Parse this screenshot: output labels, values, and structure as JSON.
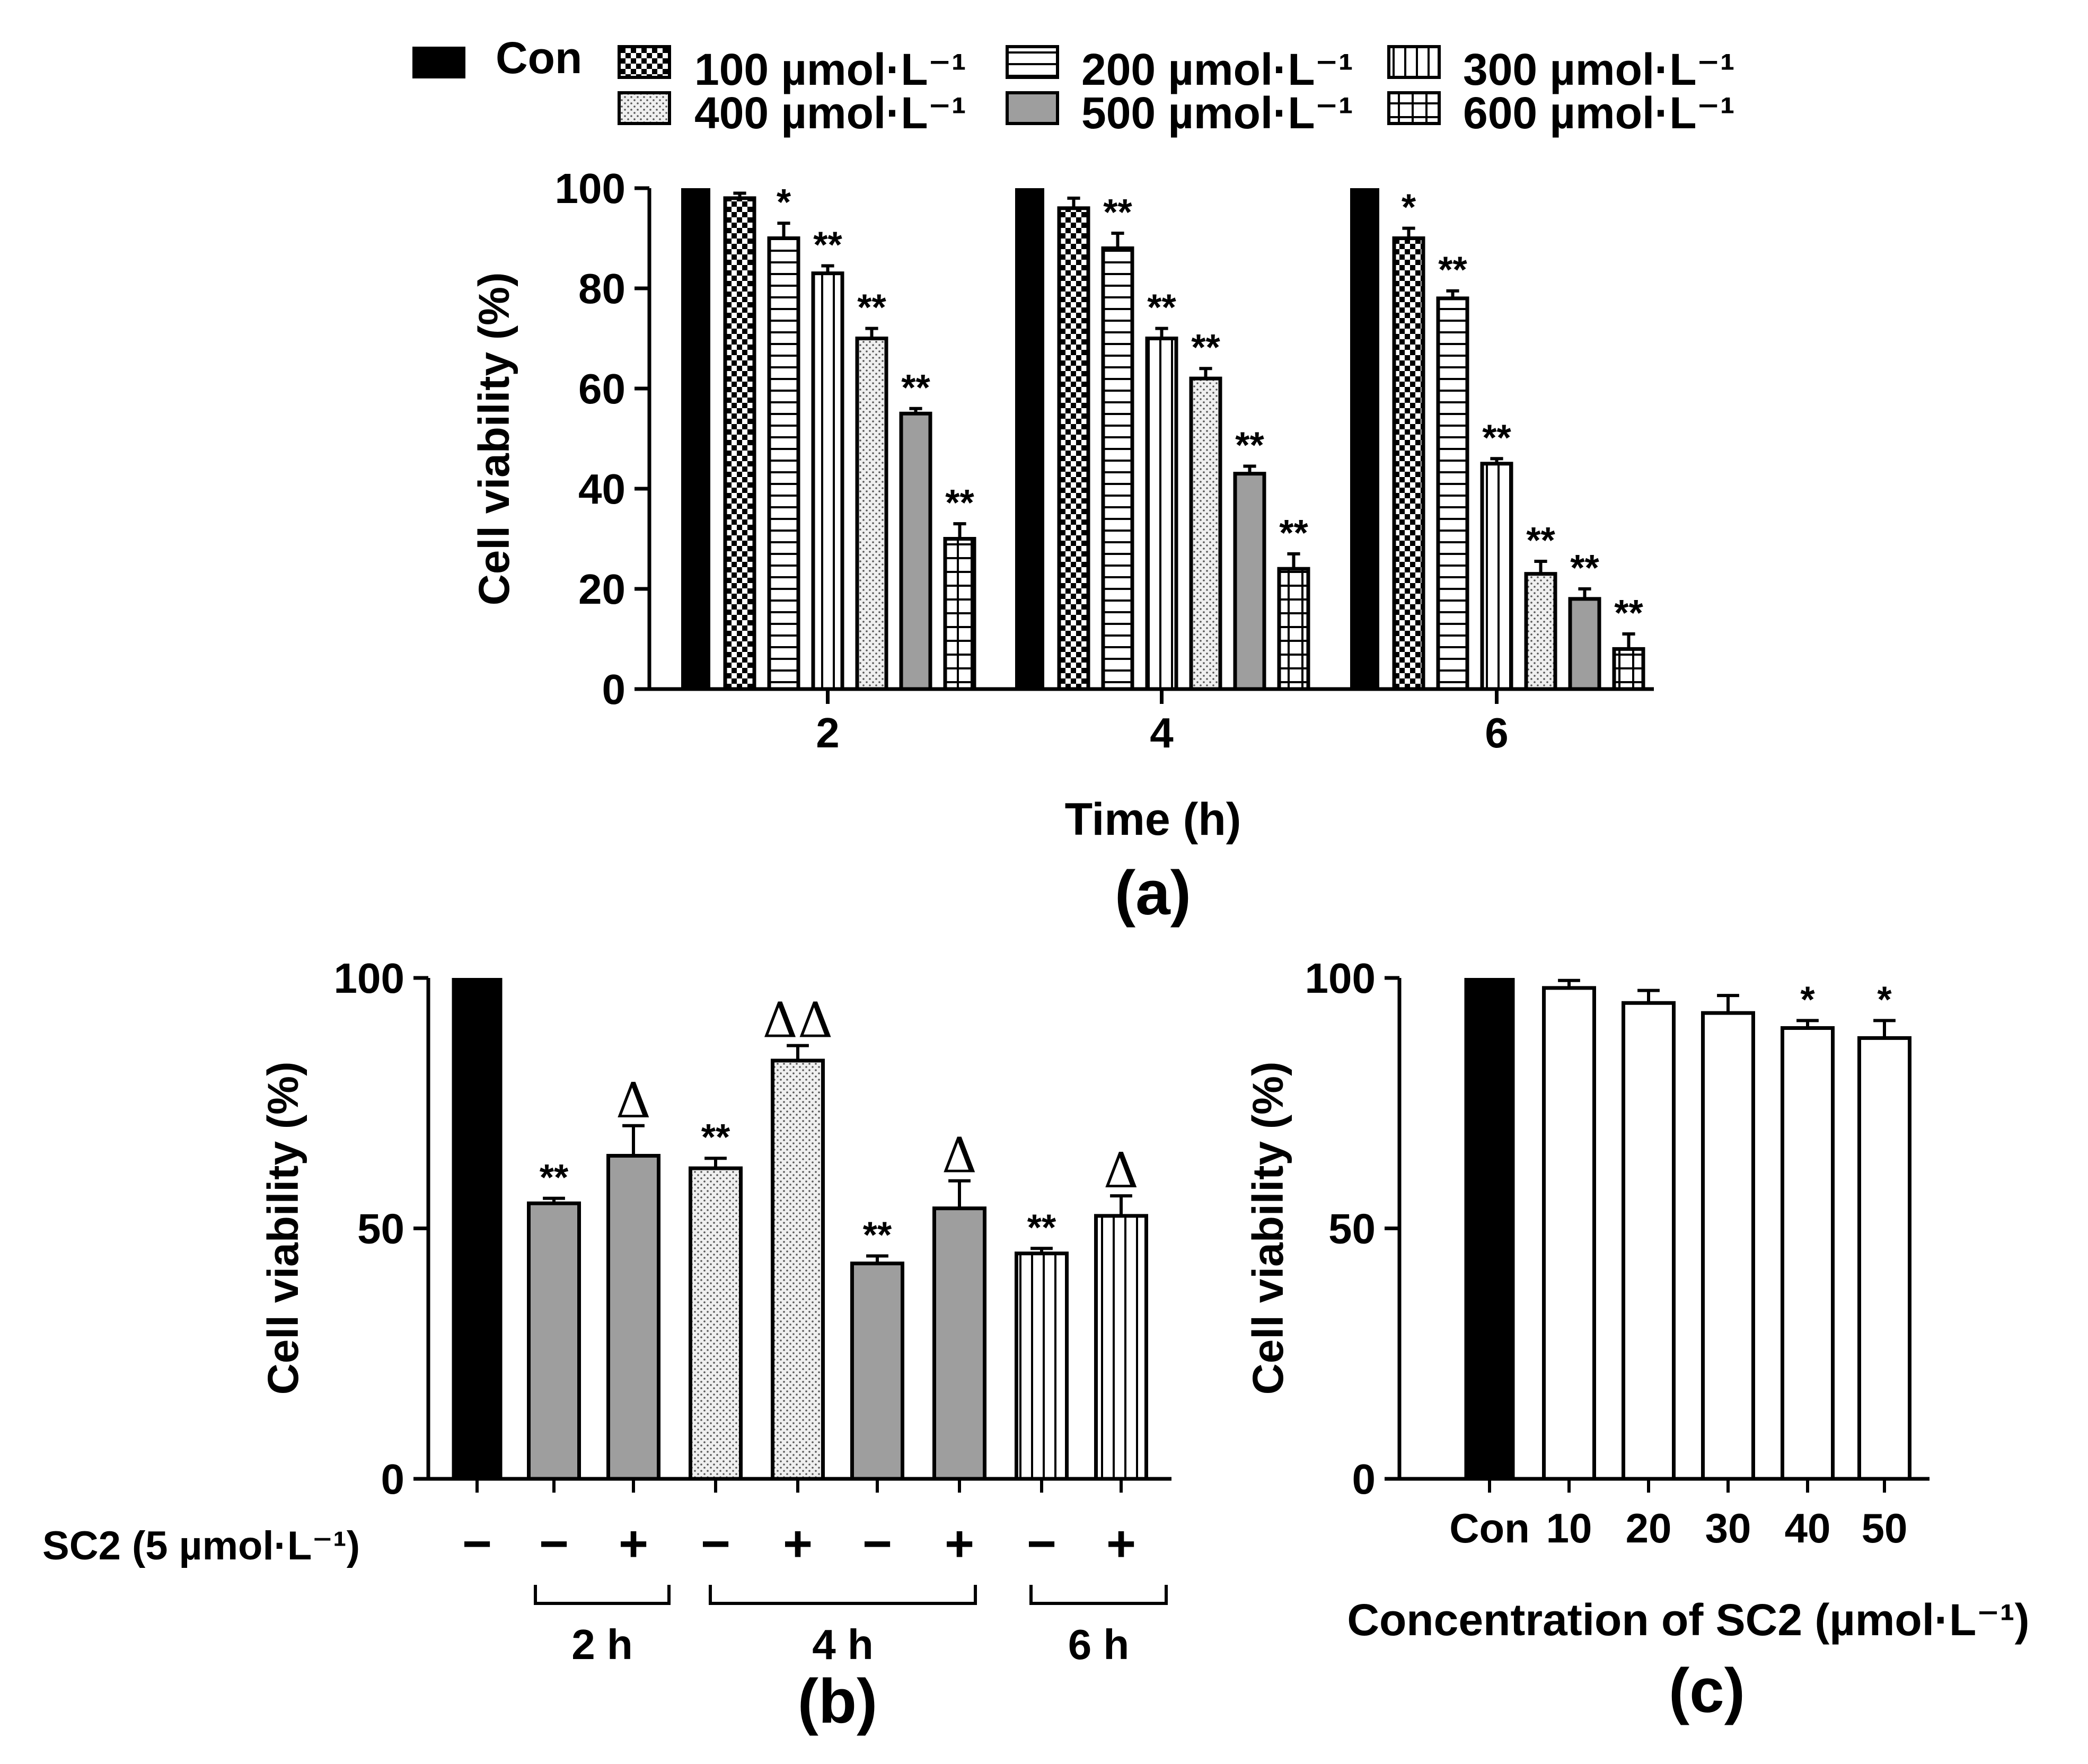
{
  "chart_data": [
    {
      "type": "bar",
      "panel_label": "(a)",
      "xlabel": "Time (h)",
      "ylabel": "Cell viability (%)",
      "ylim": [
        0,
        100
      ],
      "yticks": [
        "0",
        "20",
        "40",
        "60",
        "80",
        "100"
      ],
      "categories": [
        "2",
        "4",
        "6"
      ],
      "legend": {
        "placement": "top",
        "entries": [
          "Con",
          "100 µmol·L⁻¹",
          "200 µmol·L⁻¹",
          "300 µmol·L⁻¹",
          "400 µmol·L⁻¹",
          "500 µmol·L⁻¹",
          "600 µmol·L⁻¹"
        ]
      },
      "series": [
        {
          "name": "Con",
          "pattern": "solid-black",
          "values": [
            100,
            100,
            100
          ],
          "errors": [
            0,
            0,
            0
          ],
          "marks": [
            "",
            "",
            ""
          ]
        },
        {
          "name": "100 µmol·L⁻¹",
          "pattern": "checker",
          "values": [
            98,
            96,
            90
          ],
          "errors": [
            1,
            2,
            2
          ],
          "marks": [
            "",
            "",
            "*"
          ]
        },
        {
          "name": "200 µmol·L⁻¹",
          "pattern": "horizontal-lines",
          "values": [
            90,
            88,
            78
          ],
          "errors": [
            3,
            3,
            1.5
          ],
          "marks": [
            "*",
            "**",
            "**"
          ]
        },
        {
          "name": "300 µmol·L⁻¹",
          "pattern": "vertical-lines",
          "values": [
            83,
            70,
            45
          ],
          "errors": [
            1.5,
            2,
            1
          ],
          "marks": [
            "**",
            "**",
            "**"
          ]
        },
        {
          "name": "400 µmol·L⁻¹",
          "pattern": "dots",
          "values": [
            70,
            62,
            23
          ],
          "errors": [
            2,
            2,
            2.5
          ],
          "marks": [
            "**",
            "**",
            "**"
          ]
        },
        {
          "name": "500 µmol·L⁻¹",
          "pattern": "solid-gray",
          "values": [
            55,
            43,
            18
          ],
          "errors": [
            1,
            1.5,
            2
          ],
          "marks": [
            "**",
            "**",
            "**"
          ]
        },
        {
          "name": "600 µmol·L⁻¹",
          "pattern": "grid",
          "values": [
            30,
            24,
            8
          ],
          "errors": [
            3,
            3,
            3
          ],
          "marks": [
            "**",
            "**",
            "**"
          ]
        }
      ]
    },
    {
      "type": "bar",
      "panel_label": "(b)",
      "ylabel": "Cell viability (%)",
      "ylim": [
        0,
        100
      ],
      "yticks": [
        "0",
        "50",
        "100"
      ],
      "treatment_label": "SC2 (5 µmol·L⁻¹)",
      "groups": [
        "2 h",
        "4 h",
        "6 h"
      ],
      "bars": [
        {
          "sc2": "−",
          "pattern": "solid-black",
          "value": 100,
          "error": 0,
          "mark": ""
        },
        {
          "sc2": "−",
          "pattern": "solid-gray",
          "value": 55,
          "error": 1,
          "mark": "**"
        },
        {
          "sc2": "+",
          "pattern": "solid-gray",
          "value": 64.5,
          "error": 6,
          "mark": "Δ"
        },
        {
          "sc2": "−",
          "pattern": "dots",
          "value": 62,
          "error": 2,
          "mark": "**"
        },
        {
          "sc2": "+",
          "pattern": "dots",
          "value": 83.5,
          "error": 3,
          "mark": "ΔΔ"
        },
        {
          "sc2": "−",
          "pattern": "solid-gray",
          "value": 43,
          "error": 1.5,
          "mark": "**"
        },
        {
          "sc2": "+",
          "pattern": "solid-gray",
          "value": 54,
          "error": 5.5,
          "mark": "Δ"
        },
        {
          "sc2": "−",
          "pattern": "vertical-lines",
          "value": 45,
          "error": 1,
          "mark": "**"
        },
        {
          "sc2": "+",
          "pattern": "vertical-lines",
          "value": 52.5,
          "error": 4,
          "mark": "Δ"
        }
      ]
    },
    {
      "type": "bar",
      "panel_label": "(c)",
      "xlabel": "Concentration of SC2 (µmol·L⁻¹)",
      "ylabel": "Cell viability (%)",
      "ylim": [
        0,
        100
      ],
      "yticks": [
        "0",
        "50",
        "100"
      ],
      "categories": [
        "Con",
        "10",
        "20",
        "30",
        "40",
        "50"
      ],
      "values": [
        100,
        98,
        95,
        93,
        90,
        88
      ],
      "errors": [
        0,
        1.5,
        2.5,
        3.5,
        1.5,
        3.5
      ],
      "marks": [
        "",
        "",
        "",
        "",
        "*",
        "*"
      ],
      "patterns": [
        "solid-black",
        "white",
        "white",
        "white",
        "white",
        "white"
      ]
    }
  ]
}
